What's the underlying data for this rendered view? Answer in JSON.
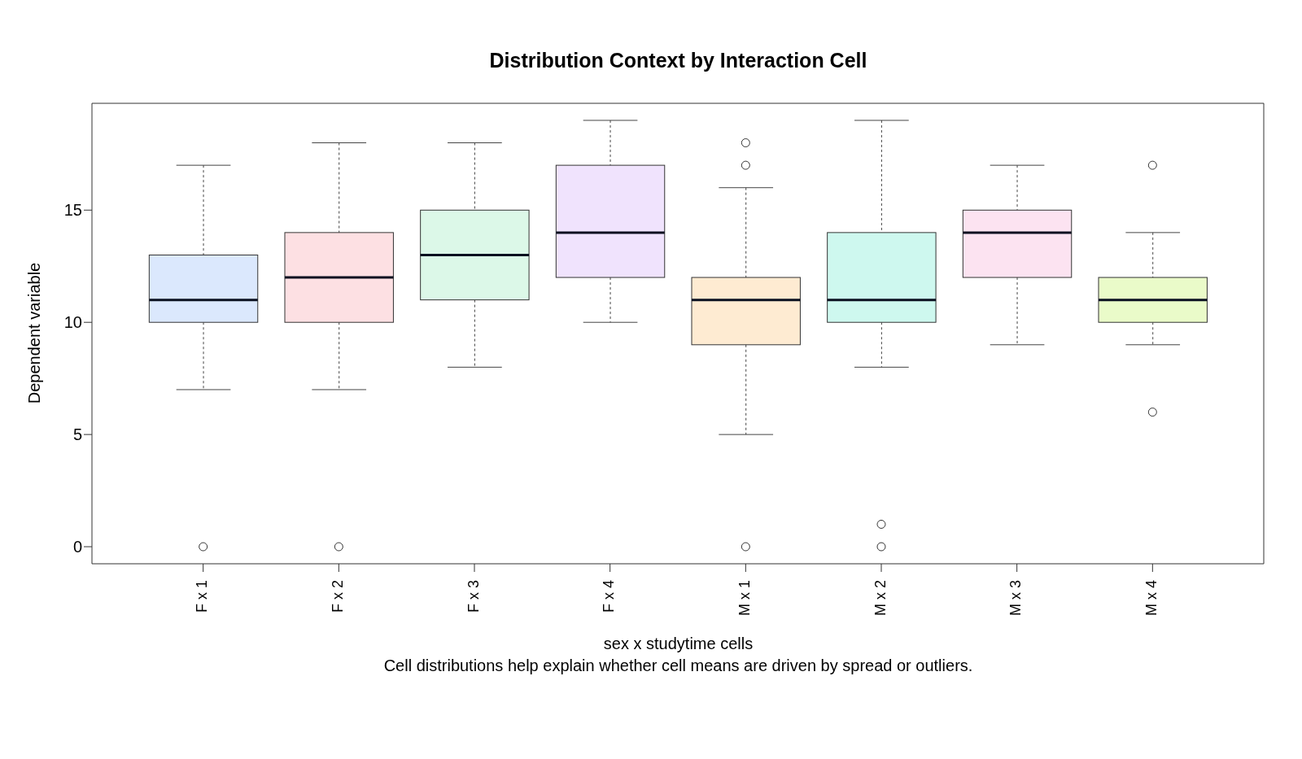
{
  "chart_data": {
    "type": "box",
    "title": "Distribution Context by Interaction Cell",
    "xlabel": "sex x studytime cells",
    "ylabel": "Dependent variable",
    "annotations": [
      "Cell distributions help explain whether cell means are driven by spread or outliers."
    ],
    "categories": [
      "F x 1",
      "F x 2",
      "F x 3",
      "F x 4",
      "M x 1",
      "M x 2",
      "M x 3",
      "M x 4"
    ],
    "colors": [
      "#dbe8fd",
      "#fde0e3",
      "#dcf8e8",
      "#f0e3fd",
      "#feebd2",
      "#cef8ef",
      "#fce3f1",
      "#eafbc9"
    ],
    "boxes": [
      {
        "low": 7,
        "q1": 10,
        "median": 11,
        "q3": 13,
        "high": 17,
        "outliers": [
          0
        ]
      },
      {
        "low": 7,
        "q1": 10,
        "median": 12,
        "q3": 14,
        "high": 18,
        "outliers": [
          0
        ]
      },
      {
        "low": 8,
        "q1": 11,
        "median": 13,
        "q3": 15,
        "high": 18
      },
      {
        "low": 10,
        "q1": 12,
        "median": 14,
        "q3": 17,
        "high": 19
      },
      {
        "low": 5,
        "q1": 9,
        "median": 11,
        "q3": 12,
        "high": 16,
        "outliers": [
          0,
          17,
          18
        ]
      },
      {
        "low": 8,
        "q1": 10,
        "median": 11,
        "q3": 14,
        "high": 19,
        "outliers": [
          0,
          1
        ]
      },
      {
        "low": 9,
        "q1": 12,
        "median": 14,
        "q3": 15,
        "high": 17
      },
      {
        "low": 9,
        "q1": 10,
        "median": 11,
        "q3": 12,
        "high": 14,
        "outliers": [
          6,
          17
        ]
      }
    ],
    "ylim": [
      -0.76,
      19.76
    ],
    "yticks": [
      0,
      5,
      10,
      15
    ]
  }
}
